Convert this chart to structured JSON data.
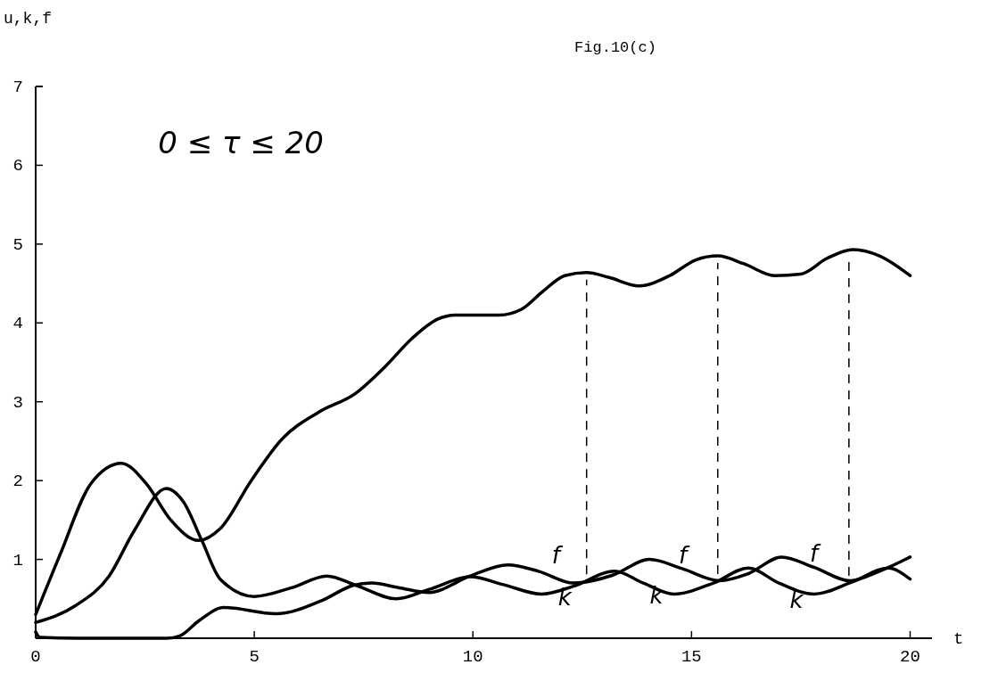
{
  "chart_data": {
    "type": "line",
    "title": "Fig.10(c)",
    "xlabel": "t",
    "ylabel": "u,k,f",
    "xlim": [
      0,
      20.5
    ],
    "xticks": [
      0,
      5,
      10,
      15,
      20
    ],
    "ylim": [
      0,
      7
    ],
    "yticks": [
      1,
      2,
      3,
      4,
      5,
      6,
      7
    ],
    "grid": false,
    "marker": "none",
    "line_style": "solid",
    "series": [
      {
        "color": "#000000",
        "x": [
          0,
          0.55,
          1.26,
          1.96,
          2.53,
          3.09,
          3.73,
          4.22,
          4.93,
          5.64,
          6.48,
          7.3,
          8,
          8.6,
          9.2,
          9.6,
          10.1,
          10.6,
          11.1,
          11.6,
          12.1,
          12.6,
          13.1,
          13.8,
          14.5,
          15.1,
          15.6,
          16.2,
          16.9,
          17.5,
          18.1,
          18.7,
          19.3,
          20
        ],
        "values": [
          0.3,
          1.05,
          1.96,
          2.22,
          1.96,
          1.5,
          1.24,
          1.39,
          2.0,
          2.53,
          2.87,
          3.1,
          3.45,
          3.8,
          4.05,
          4.1,
          4.1,
          4.1,
          4.17,
          4.4,
          4.6,
          4.64,
          4.58,
          4.47,
          4.6,
          4.8,
          4.85,
          4.75,
          4.6,
          4.62,
          4.82,
          4.93,
          4.85,
          4.6
        ]
      },
      {
        "color": "#000000",
        "x": [
          0,
          0.9,
          1.68,
          2.25,
          2.99,
          3.38,
          3.8,
          4.22,
          5.0,
          5.85,
          6.66,
          7.33,
          8.25,
          9.0,
          9.94,
          10.7,
          11.57,
          12.3,
          13.24,
          13.9,
          14.6,
          15.5,
          16.3,
          17.0,
          17.8,
          18.7,
          19.5,
          20
        ],
        "values": [
          0.2,
          0.41,
          0.79,
          1.36,
          1.9,
          1.73,
          1.24,
          0.75,
          0.53,
          0.64,
          0.79,
          0.67,
          0.5,
          0.62,
          0.78,
          0.68,
          0.56,
          0.66,
          0.85,
          0.7,
          0.56,
          0.7,
          0.89,
          0.7,
          0.56,
          0.72,
          0.89,
          0.75
        ]
      },
      {
        "color": "#000000",
        "x": [
          0,
          0.1,
          1,
          2,
          3,
          3.3,
          3.73,
          4.3,
          5.5,
          6.55,
          7.26,
          7.68,
          8.32,
          9.0,
          9.94,
          10.8,
          11.5,
          12.3,
          13.2,
          14.04,
          14.8,
          15.64,
          16.3,
          17.06,
          17.8,
          18.63,
          19.3,
          20
        ],
        "values": [
          0.08,
          0.01,
          0,
          0,
          0,
          0.03,
          0.22,
          0.39,
          0.31,
          0.48,
          0.67,
          0.7,
          0.64,
          0.58,
          0.79,
          0.93,
          0.85,
          0.7,
          0.8,
          1.0,
          0.88,
          0.73,
          0.82,
          1.03,
          0.9,
          0.73,
          0.85,
          1.03
        ]
      }
    ],
    "ref_lines": [
      {
        "axis": "x",
        "value": 12.6,
        "line_style": "dashed",
        "color": "#000000"
      },
      {
        "axis": "x",
        "value": 15.6,
        "line_style": "dashed",
        "color": "#000000"
      },
      {
        "axis": "x",
        "value": 18.6,
        "line_style": "dashed",
        "color": "#000000"
      }
    ],
    "annotations": [
      "0 ≤ τ ≤ 20",
      "f",
      "f",
      "f",
      "k",
      "k",
      "k"
    ]
  }
}
